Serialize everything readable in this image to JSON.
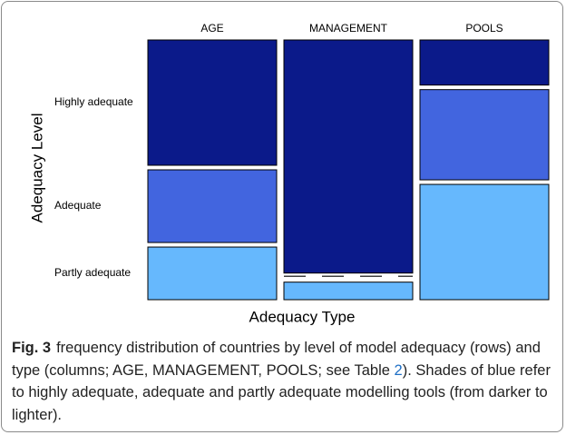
{
  "chart_data": {
    "type": "mosaic",
    "x_label": "Adequacy Type",
    "y_label": "Adequacy Level",
    "categories": [
      "AGE",
      "MANAGEMENT",
      "POOLS"
    ],
    "series": [
      {
        "name": "Highly adequate",
        "color": "#0b1a8a",
        "values": [
          50,
          93,
          18
        ]
      },
      {
        "name": "Adequate",
        "color": "#4265df",
        "values": [
          29,
          0,
          36
        ]
      },
      {
        "name": "Partly adequate",
        "color": "#66b8fd",
        "values": [
          21,
          7,
          46
        ]
      }
    ]
  },
  "caption": {
    "label": "Fig. 3",
    "text": "frequency distribution of countries by level of model adequacy (rows) and type (columns; AGE, MANAGEMENT, POOLS; see ",
    "link_prefix": "Table ",
    "link": "2",
    "text_after": "). Shades of blue refer to highly adequate, adequate and partly adequate modelling tools (from darker to lighter)."
  }
}
